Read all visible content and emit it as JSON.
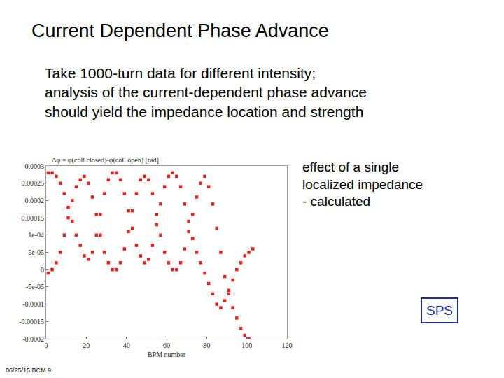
{
  "chart_data": {
    "type": "scatter",
    "title": "Current Dependent Phase Advance",
    "subtitle": [
      "Take 1000-turn data for different intensity;",
      "analysis of the current-dependent phase advance",
      "should yield the impedance location and strength"
    ],
    "xlabel": "BPM number",
    "ylabel": "Δφ = φ(coll closed)-φ(coll open) [rad]",
    "color": "#e3231b",
    "marker": "square",
    "grid": false,
    "x": [
      1,
      3,
      5,
      7,
      9,
      11,
      13,
      15,
      17,
      19,
      21,
      23,
      25,
      27,
      29,
      31,
      33,
      35,
      37,
      39,
      41,
      43,
      45,
      47,
      49,
      51,
      53,
      55,
      57,
      59,
      61,
      63,
      65,
      67,
      69,
      71,
      73,
      75,
      77,
      79,
      81,
      83,
      85,
      87,
      89,
      91,
      93,
      95,
      97,
      99,
      101,
      103,
      1,
      3,
      5,
      7,
      9,
      11,
      13,
      15,
      17,
      19,
      21,
      23,
      25,
      27,
      29,
      31,
      33,
      35,
      37,
      39,
      41,
      43,
      45,
      47,
      49,
      51,
      53,
      55,
      57,
      59,
      61,
      63,
      65,
      67,
      69,
      71,
      73,
      75,
      77,
      79,
      81,
      83,
      85,
      87,
      89,
      91,
      93,
      95,
      97,
      99,
      101
    ],
    "values": [
      0.00028,
      0.00028,
      0.00027,
      0.00025,
      0.00022,
      0.00018,
      0.00014,
      0.0001,
      7e-05,
      4e-05,
      3e-05,
      5e-05,
      0.0001,
      0.00016,
      0.00022,
      0.00026,
      0.00028,
      0.00028,
      0.00026,
      0.00022,
      0.00017,
      0.00012,
      7e-05,
      4e-05,
      2e-05,
      3e-05,
      7e-05,
      0.00013,
      0.00019,
      0.00024,
      0.00027,
      0.00028,
      0.00027,
      0.00024,
      0.00019,
      0.00014,
      9e-05,
      5e-05,
      2e-05,
      -1e-05,
      -4e-05,
      -7e-05,
      -0.0001,
      -0.00011,
      -9e-05,
      -6e-05,
      -3e-05,
      0,
      2e-05,
      4e-05,
      5e-05,
      6e-05,
      -1e-05,
      0,
      2e-05,
      5e-05,
      0.0001,
      0.00015,
      0.0002,
      0.00024,
      0.00026,
      0.00027,
      0.00025,
      0.00021,
      0.00016,
      0.0001,
      5e-05,
      2e-05,
      0,
      0,
      2e-05,
      6e-05,
      0.00011,
      0.00017,
      0.00022,
      0.00026,
      0.00027,
      0.00026,
      0.00022,
      0.00016,
      0.0001,
      5e-05,
      2e-05,
      0,
      0,
      2e-05,
      6e-05,
      0.00011,
      0.00016,
      0.00021,
      0.00025,
      0.00027,
      0.00024,
      0.00019,
      0.00012,
      5e-05,
      -2e-05,
      -7e-05,
      -0.00011,
      -0.00014,
      -0.00017,
      -0.00019,
      -0.0002
    ],
    "xlim": [
      0,
      120
    ],
    "xticks": [
      0,
      20,
      40,
      60,
      80,
      100,
      120
    ],
    "ylim": [
      -0.0002,
      0.0003
    ],
    "yticks": [
      -0.0002,
      -0.00015,
      -0.0001,
      {
        "value": -5e-05,
        "label": "-5e-05"
      },
      0,
      {
        "value": 5e-05,
        "label": "5e-05"
      },
      {
        "value": 0.0001,
        "label": "1e-04"
      },
      0.00015,
      0.0002,
      0.00025,
      0.0003
    ],
    "annotations": [
      {
        "text": [
          "effect of a single",
          "localized impedance",
          "- calculated"
        ]
      },
      {
        "text": [
          "SPS"
        ]
      },
      {
        "text": [
          "06/25/15 BCM 9"
        ]
      }
    ]
  }
}
